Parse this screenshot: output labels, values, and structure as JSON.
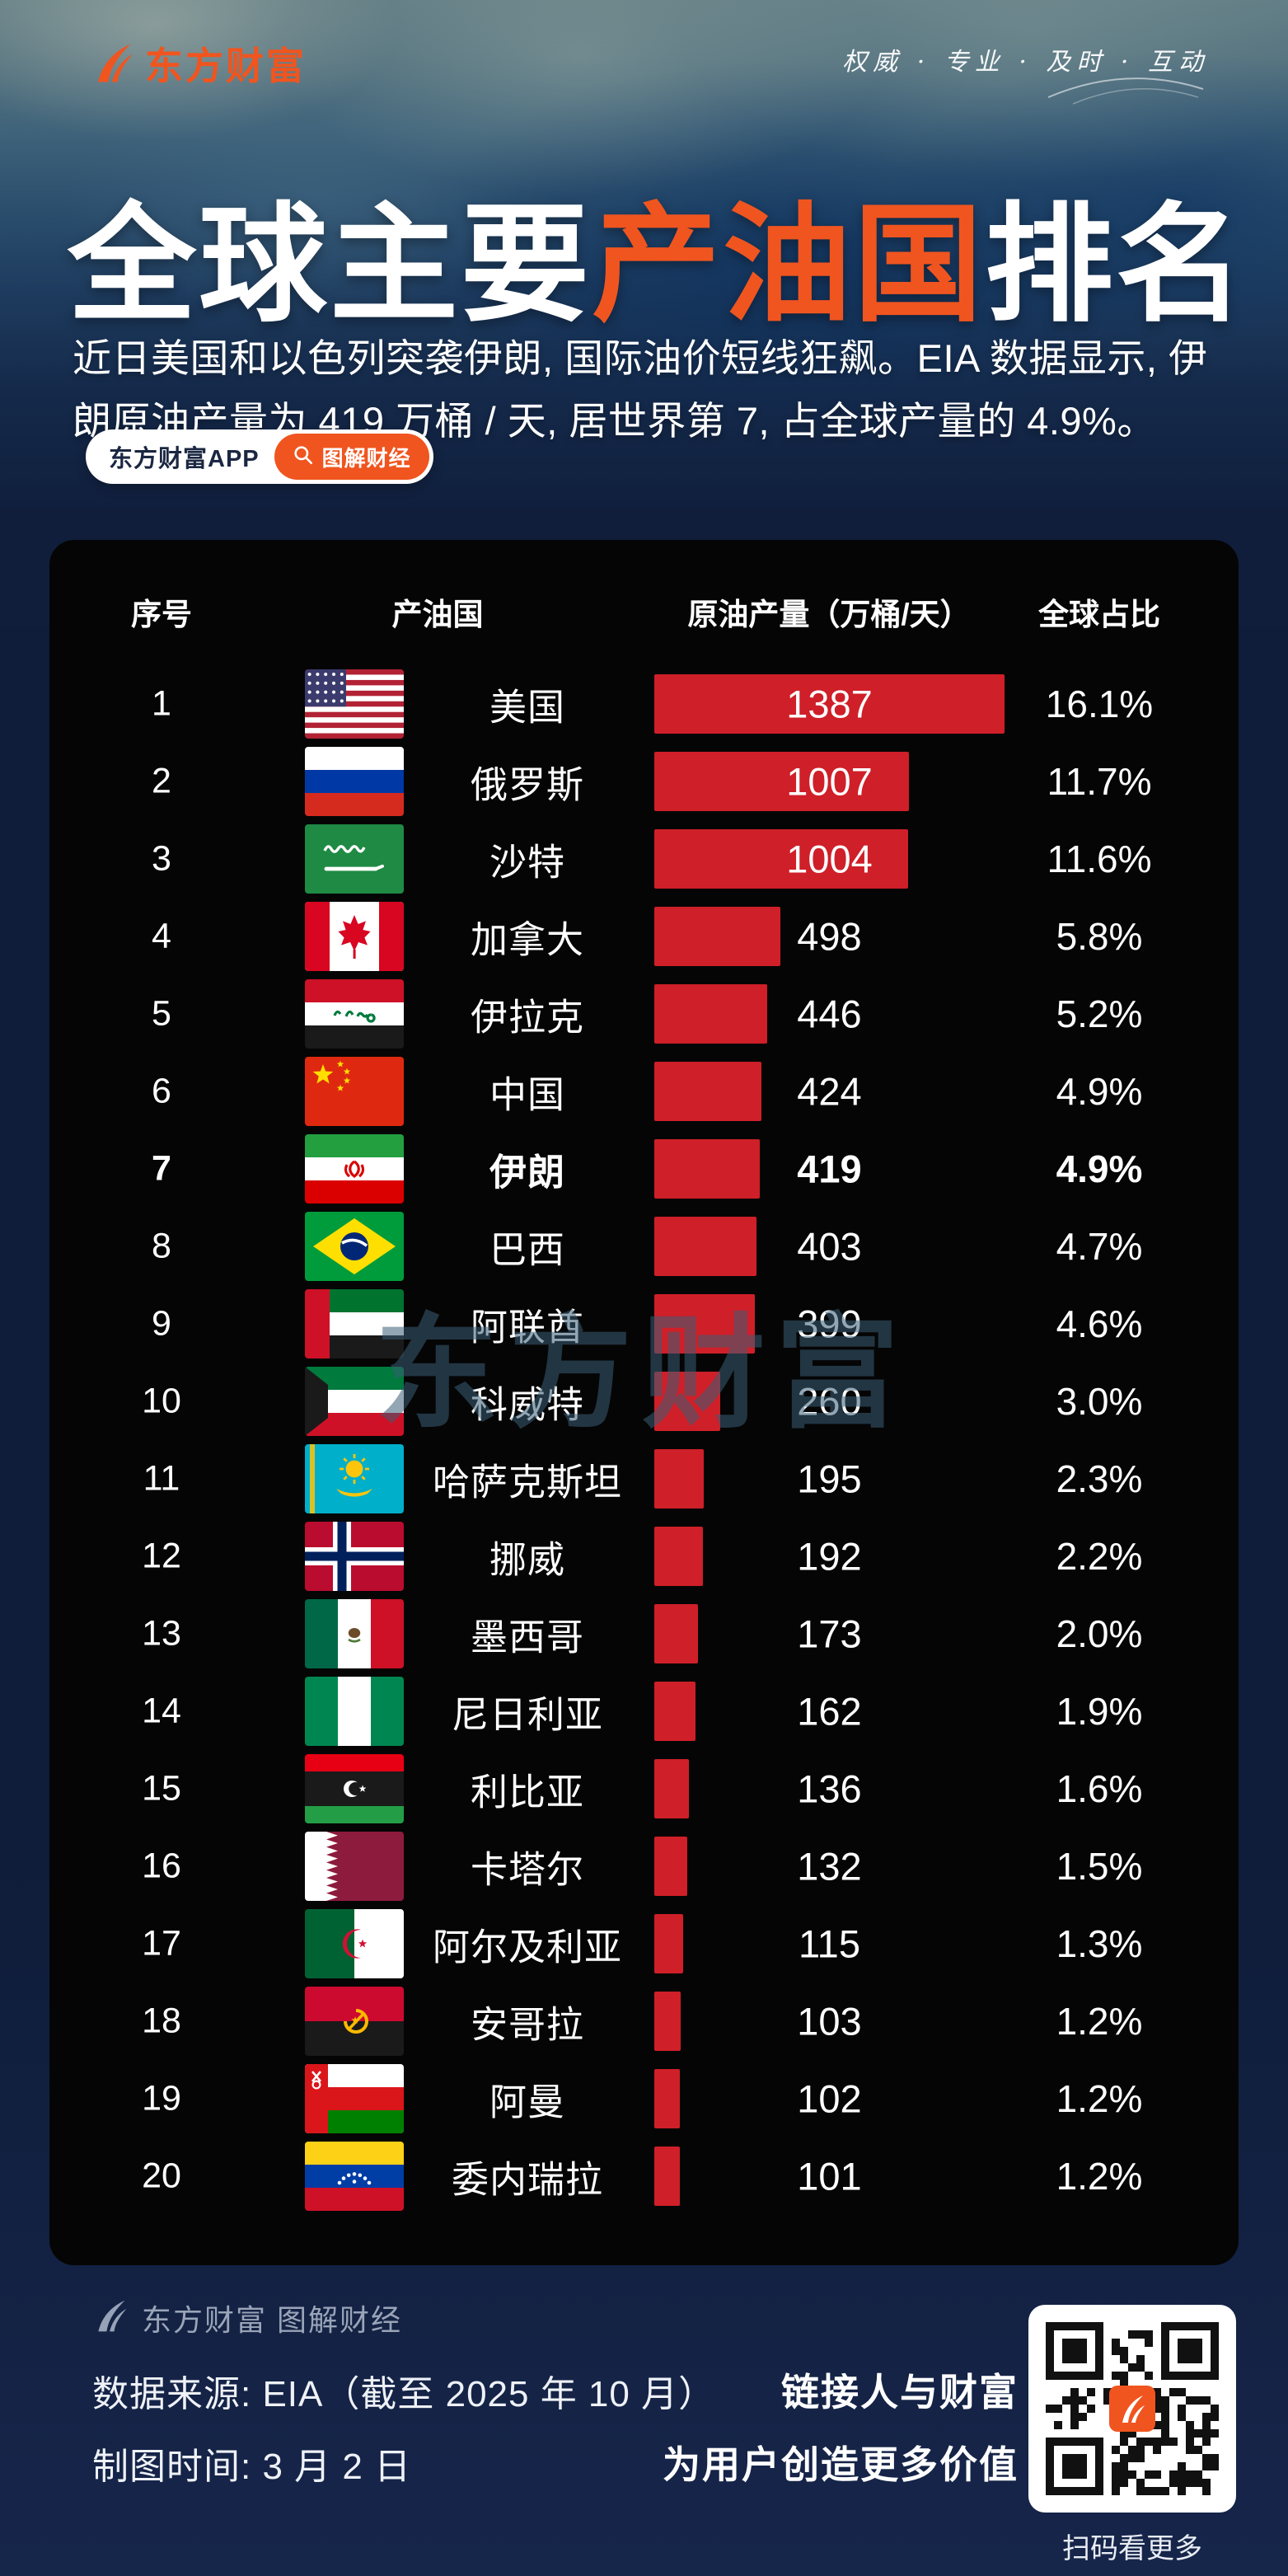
{
  "colors": {
    "accent": "#f0551f",
    "bar_red": "#cf1f28",
    "navy_bg": "#101e3c",
    "panel_bg": "#050505"
  },
  "brand": {
    "logo_text": "东方财富",
    "tagline": "权威 · 专业 · 及时 · 互动"
  },
  "title": {
    "prefix": "全球主要",
    "highlight": "产油国",
    "suffix": "排名"
  },
  "intro": "近日美国和以色列突袭伊朗, 国际油价短线狂飙。EIA 数据显示, 伊朗原油产量为 419 万桶 / 天, 居世界第 7, 占全球产量的 4.9%。",
  "badges": {
    "app_label": "东方财富APP",
    "tag_label": "图解财经"
  },
  "watermark": "东方财富",
  "table": {
    "headers": [
      "序号",
      "产油国",
      "原油产量（万桶/天）",
      "全球占比"
    ],
    "max_value": 1387,
    "rows": [
      {
        "rank": 1,
        "country": "美国",
        "flag": "usa",
        "value": 1387,
        "share": "16.1%",
        "bold": false
      },
      {
        "rank": 2,
        "country": "俄罗斯",
        "flag": "russia",
        "value": 1007,
        "share": "11.7%",
        "bold": false
      },
      {
        "rank": 3,
        "country": "沙特",
        "flag": "saudi",
        "value": 1004,
        "share": "11.6%",
        "bold": false
      },
      {
        "rank": 4,
        "country": "加拿大",
        "flag": "canada",
        "value": 498,
        "share": "5.8%",
        "bold": false
      },
      {
        "rank": 5,
        "country": "伊拉克",
        "flag": "iraq",
        "value": 446,
        "share": "5.2%",
        "bold": false
      },
      {
        "rank": 6,
        "country": "中国",
        "flag": "china",
        "value": 424,
        "share": "4.9%",
        "bold": false
      },
      {
        "rank": 7,
        "country": "伊朗",
        "flag": "iran",
        "value": 419,
        "share": "4.9%",
        "bold": true
      },
      {
        "rank": 8,
        "country": "巴西",
        "flag": "brazil",
        "value": 403,
        "share": "4.7%",
        "bold": false
      },
      {
        "rank": 9,
        "country": "阿联酋",
        "flag": "uae",
        "value": 399,
        "share": "4.6%",
        "bold": false
      },
      {
        "rank": 10,
        "country": "科威特",
        "flag": "kuwait",
        "value": 260,
        "share": "3.0%",
        "bold": false
      },
      {
        "rank": 11,
        "country": "哈萨克斯坦",
        "flag": "kazakhstan",
        "value": 195,
        "share": "2.3%",
        "bold": false
      },
      {
        "rank": 12,
        "country": "挪威",
        "flag": "norway",
        "value": 192,
        "share": "2.2%",
        "bold": false
      },
      {
        "rank": 13,
        "country": "墨西哥",
        "flag": "mexico",
        "value": 173,
        "share": "2.0%",
        "bold": false
      },
      {
        "rank": 14,
        "country": "尼日利亚",
        "flag": "nigeria",
        "value": 162,
        "share": "1.9%",
        "bold": false
      },
      {
        "rank": 15,
        "country": "利比亚",
        "flag": "libya",
        "value": 136,
        "share": "1.6%",
        "bold": false
      },
      {
        "rank": 16,
        "country": "卡塔尔",
        "flag": "qatar",
        "value": 132,
        "share": "1.5%",
        "bold": false
      },
      {
        "rank": 17,
        "country": "阿尔及利亚",
        "flag": "algeria",
        "value": 115,
        "share": "1.3%",
        "bold": false
      },
      {
        "rank": 18,
        "country": "安哥拉",
        "flag": "angola",
        "value": 103,
        "share": "1.2%",
        "bold": false
      },
      {
        "rank": 19,
        "country": "阿曼",
        "flag": "oman",
        "value": 102,
        "share": "1.2%",
        "bold": false
      },
      {
        "rank": 20,
        "country": "委内瑞拉",
        "flag": "venezuela",
        "value": 101,
        "share": "1.2%",
        "bold": false
      }
    ]
  },
  "chart_data": {
    "type": "bar",
    "orientation": "horizontal",
    "title": "全球主要产油国排名",
    "xlabel": "原油产量（万桶/天）",
    "categories": [
      "美国",
      "俄罗斯",
      "沙特",
      "加拿大",
      "伊拉克",
      "中国",
      "伊朗",
      "巴西",
      "阿联酋",
      "科威特",
      "哈萨克斯坦",
      "挪威",
      "墨西哥",
      "尼日利亚",
      "利比亚",
      "卡塔尔",
      "阿尔及利亚",
      "安哥拉",
      "阿曼",
      "委内瑞拉"
    ],
    "series": [
      {
        "name": "原油产量（万桶/天）",
        "values": [
          1387,
          1007,
          1004,
          498,
          446,
          424,
          419,
          403,
          399,
          260,
          195,
          192,
          173,
          162,
          136,
          132,
          115,
          103,
          102,
          101
        ]
      },
      {
        "name": "全球占比",
        "values": [
          "16.1%",
          "11.7%",
          "11.6%",
          "5.8%",
          "5.2%",
          "4.9%",
          "4.9%",
          "4.7%",
          "4.6%",
          "3.0%",
          "2.3%",
          "2.2%",
          "2.0%",
          "1.9%",
          "1.6%",
          "1.5%",
          "1.3%",
          "1.2%",
          "1.2%",
          "1.2%"
        ]
      }
    ],
    "xlim": [
      0,
      1387
    ],
    "grid": false,
    "highlight_category": "伊朗",
    "bar_color": "#cf1f28"
  },
  "footer": {
    "brand_line": "东方财富 图解财经",
    "source_line": "数据来源: EIA（截至 2025 年 10 月）",
    "date_line": "制图时间: 3 月 2 日",
    "slogan_line1": "链接人与财富",
    "slogan_line2": "为用户创造更多价值",
    "qr_caption": "扫码看更多"
  }
}
